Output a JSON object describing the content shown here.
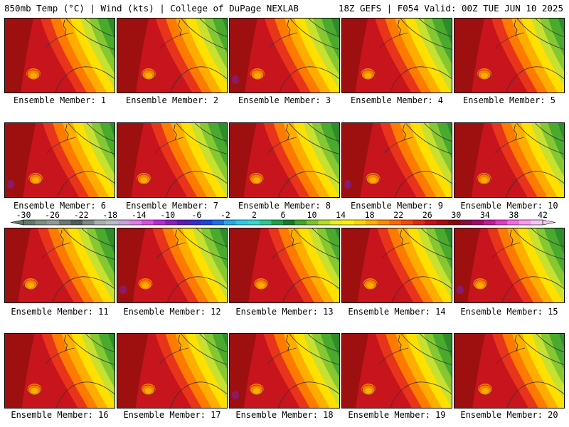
{
  "header": {
    "left": "850mb Temp (°C) | Wind (kts) | College of DuPage NEXLAB",
    "right": "18Z GEFS | F054 Valid: 00Z TUE JUN 10 2025"
  },
  "members": [
    {
      "label": "Ensemble Member: 1"
    },
    {
      "label": "Ensemble Member: 2"
    },
    {
      "label": "Ensemble Member: 3"
    },
    {
      "label": "Ensemble Member: 4"
    },
    {
      "label": "Ensemble Member: 5"
    },
    {
      "label": "Ensemble Member: 6"
    },
    {
      "label": "Ensemble Member: 7"
    },
    {
      "label": "Ensemble Member: 8"
    },
    {
      "label": "Ensemble Member: 9"
    },
    {
      "label": "Ensemble Member: 10"
    },
    {
      "label": "Ensemble Member: 11"
    },
    {
      "label": "Ensemble Member: 12"
    },
    {
      "label": "Ensemble Member: 13"
    },
    {
      "label": "Ensemble Member: 14"
    },
    {
      "label": "Ensemble Member: 15"
    },
    {
      "label": "Ensemble Member: 16"
    },
    {
      "label": "Ensemble Member: 17"
    },
    {
      "label": "Ensemble Member: 18"
    },
    {
      "label": "Ensemble Member: 19"
    },
    {
      "label": "Ensemble Member: 20"
    }
  ],
  "colorbar": {
    "ticks": [
      "-30",
      "-26",
      "-22",
      "-18",
      "-14",
      "-10",
      "-6",
      "-2",
      "2",
      "6",
      "10",
      "14",
      "18",
      "22",
      "26",
      "30",
      "34",
      "38",
      "42"
    ],
    "colors": [
      "#5f7a66",
      "#7c8d82",
      "#8d9d95",
      "#6f7771",
      "#525a55",
      "#7e8782",
      "#a7b0ad",
      "#b8bec3",
      "#c9a3d8",
      "#e07be8",
      "#d74fe0",
      "#b32bd4",
      "#8a1cc2",
      "#5a1bb4",
      "#3b2bc8",
      "#1e45d8",
      "#1f6fe0",
      "#2aa6e8",
      "#33c6e4",
      "#38d6d0",
      "#2fc58c",
      "#1ea04a",
      "#157a2a",
      "#41a82a",
      "#7cc42a",
      "#b6dc2c",
      "#e8ec33",
      "#fff200",
      "#ffd500",
      "#ffb100",
      "#ff8c00",
      "#ff6a00",
      "#f04a0a",
      "#e02a12",
      "#c80f16",
      "#a80a12",
      "#86080e",
      "#8a0a3a",
      "#a10a6a",
      "#c11a9a",
      "#e23ac6",
      "#f56adf",
      "#ff9af0",
      "#f2c6f6"
    ]
  },
  "map_colors": {
    "deep_red": "#9e1010",
    "red": "#c8141c",
    "red_orange": "#e8341a",
    "orange": "#ff7a00",
    "orange_yellow": "#ffae00",
    "yellow": "#ffe000",
    "lime": "#c8e030",
    "light_green": "#86c832",
    "green": "#4aaa2e",
    "dark_green": "#2e8c2a",
    "purple": "#8a1a6a"
  }
}
